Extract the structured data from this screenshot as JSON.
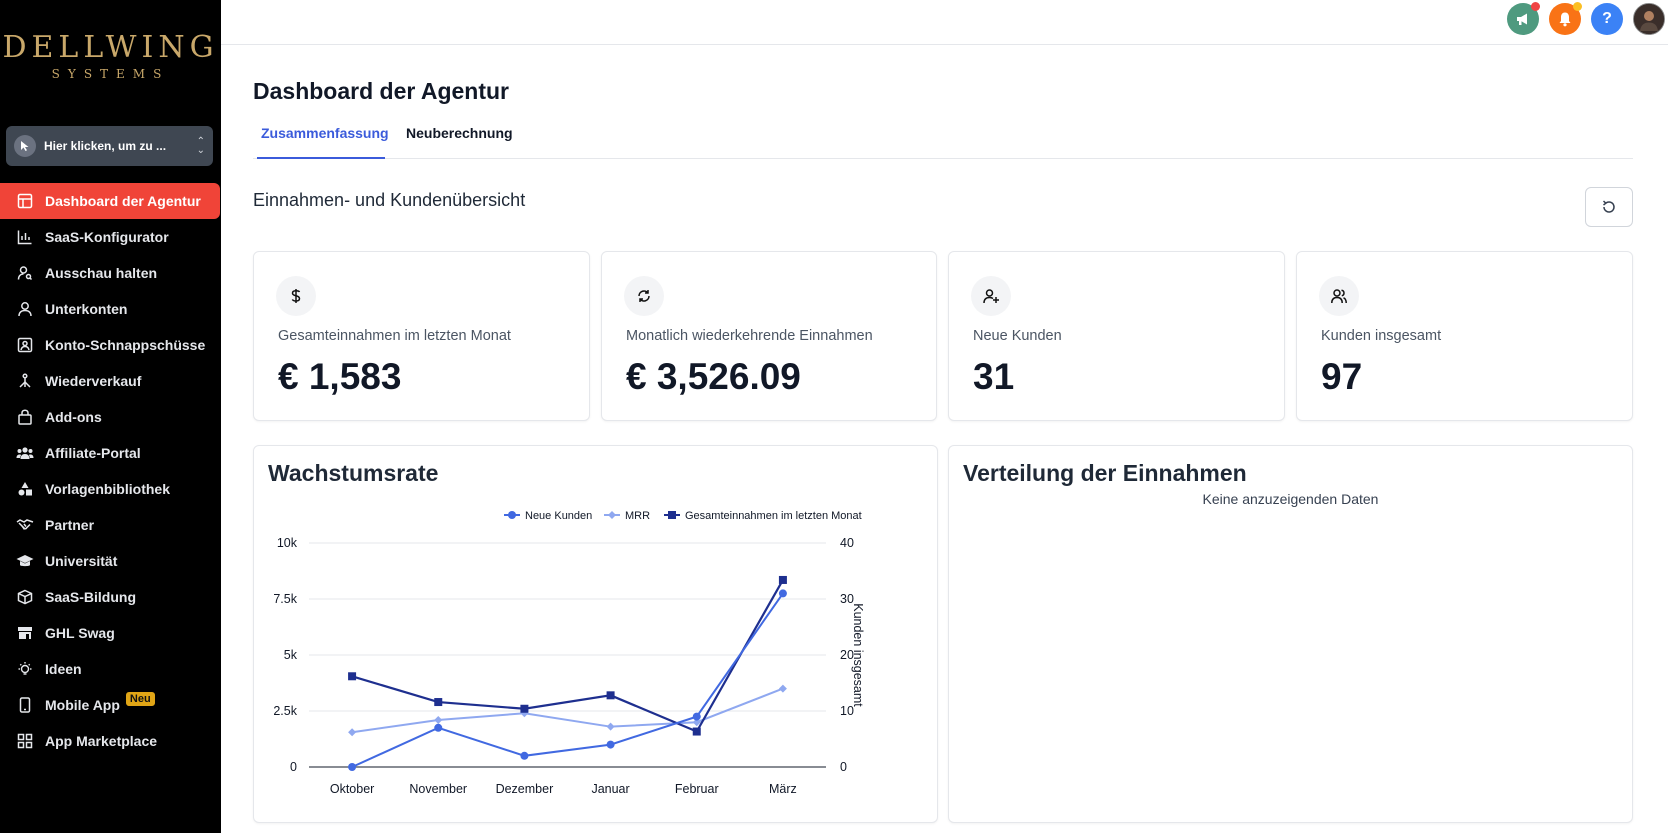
{
  "sidebar": {
    "logo_main": "DELLWING",
    "logo_sub": "SYSTEMS",
    "location_switcher_label": "Hier klicken, um zu ...",
    "items": [
      {
        "label": "Dashboard der Agentur",
        "icon": "dashboard-icon"
      },
      {
        "label": "SaaS-Konfigurator",
        "icon": "chart-bars-icon"
      },
      {
        "label": "Ausschau halten",
        "icon": "user-search-icon"
      },
      {
        "label": "Unterkonten",
        "icon": "user-icon"
      },
      {
        "label": "Konto-Schnappschüsse",
        "icon": "snapshot-icon"
      },
      {
        "label": "Wiederverkauf",
        "icon": "resell-icon"
      },
      {
        "label": "Add-ons",
        "icon": "bag-icon"
      },
      {
        "label": "Affiliate-Portal",
        "icon": "users-group-icon"
      },
      {
        "label": "Vorlagenbibliothek",
        "icon": "shapes-icon"
      },
      {
        "label": "Partner",
        "icon": "handshake-icon"
      },
      {
        "label": "Universität",
        "icon": "graduation-cap-icon"
      },
      {
        "label": "SaaS-Bildung",
        "icon": "box-icon"
      },
      {
        "label": "GHL Swag",
        "icon": "store-icon"
      },
      {
        "label": "Ideen",
        "icon": "lightbulb-icon"
      },
      {
        "label": "Mobile App",
        "icon": "phone-icon",
        "badge": "Neu"
      },
      {
        "label": "App Marketplace",
        "icon": "grid-icon"
      }
    ]
  },
  "topbar": {
    "announce_color": "#4f9a7f",
    "notify_color": "#f97316",
    "help_label": "?",
    "help_color": "#3b82f6"
  },
  "header": {
    "title": "Dashboard der Agentur",
    "tabs": [
      "Zusammenfassung",
      "Neuberechnung"
    ]
  },
  "section": {
    "title": "Einnahmen- und Kundenübersicht"
  },
  "kpis": [
    {
      "label": "Gesamteinnahmen im letzten Monat",
      "value": "€ 1,583",
      "icon": "dollar-icon"
    },
    {
      "label": "Monatlich wiederkehrende Einnahmen",
      "value": "€ 3,526.09",
      "icon": "recurring-icon"
    },
    {
      "label": "Neue Kunden",
      "value": "31",
      "icon": "user-plus-icon"
    },
    {
      "label": "Kunden insgesamt",
      "value": "97",
      "icon": "users-icon"
    }
  ],
  "growth": {
    "title": "Wachstumsrate"
  },
  "distribution": {
    "title": "Verteilung der Einnahmen",
    "empty_text": "Keine anzuzeigenden Daten"
  },
  "chart_data": {
    "type": "line",
    "title": "Wachstumsrate",
    "categories": [
      "Oktober",
      "November",
      "Dezember",
      "Januar",
      "Februar",
      "März"
    ],
    "y_left": {
      "ticks": [
        "0",
        "2.5k",
        "5k",
        "7.5k",
        "10k"
      ],
      "range": [
        0,
        10000
      ]
    },
    "y_right": {
      "ticks": [
        "0",
        "10",
        "20",
        "30",
        "40"
      ],
      "range": [
        0,
        40
      ],
      "label": "Kunden insgesamt"
    },
    "series": [
      {
        "name": "Neue Kunden",
        "axis": "right",
        "color": "#4169e1",
        "marker": "circle",
        "values": [
          0,
          7,
          2,
          4,
          9,
          31
        ]
      },
      {
        "name": "MRR",
        "axis": "left",
        "color": "#8fa8f0",
        "marker": "diamond",
        "values": [
          1550,
          2100,
          2400,
          1800,
          2000,
          3500
        ]
      },
      {
        "name": "Gesamteinnahmen im letzten Monat",
        "axis": "left",
        "color": "#1e2f8f",
        "marker": "square",
        "values": [
          4050,
          2900,
          2600,
          3200,
          1583,
          8350
        ]
      }
    ],
    "legend_position": "top-right"
  }
}
